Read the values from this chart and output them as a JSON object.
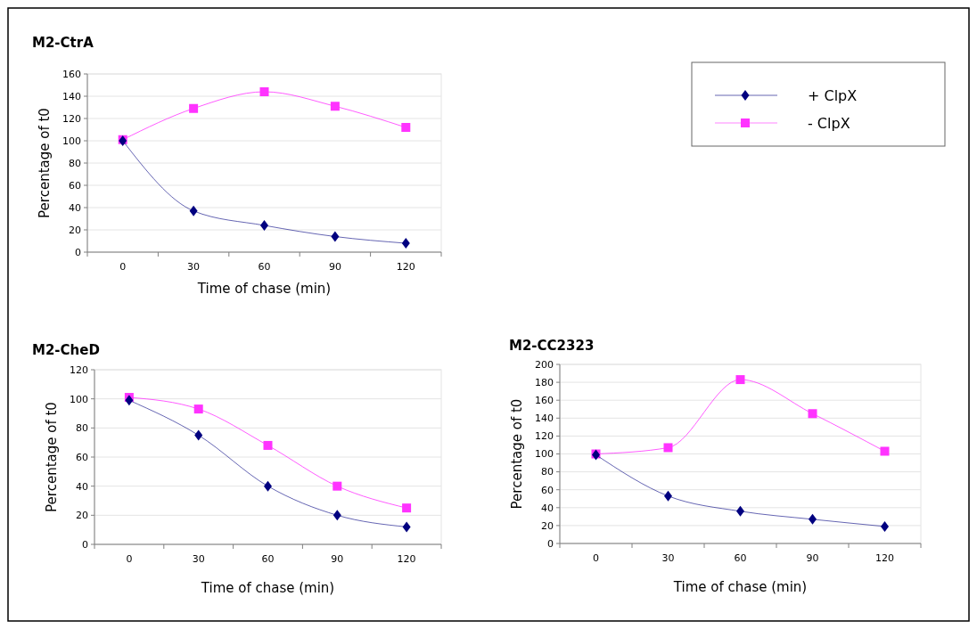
{
  "chart_data": [
    {
      "type": "line",
      "title": "M2-CtrA",
      "xlabel": "Time of chase (min)",
      "ylabel": "Percentage of t0",
      "categories": [
        "0",
        "30",
        "60",
        "90",
        "120"
      ],
      "ylim": [
        0,
        160
      ],
      "yticks": [
        0,
        20,
        40,
        60,
        80,
        100,
        120,
        140,
        160
      ],
      "grid": "y",
      "legend": "right",
      "series": [
        {
          "name": "+ ClpX",
          "color": "#000080",
          "marker": "diamond",
          "values": [
            100,
            37,
            24,
            14,
            8
          ]
        },
        {
          "name": "- ClpX",
          "color": "#ff33ff",
          "marker": "square",
          "values": [
            101,
            129,
            144,
            131,
            112
          ]
        }
      ]
    },
    {
      "type": "line",
      "title": "M2-CheD",
      "xlabel": "Time of chase (min)",
      "ylabel": "Percentage of t0",
      "categories": [
        "0",
        "30",
        "60",
        "90",
        "120"
      ],
      "ylim": [
        0,
        120
      ],
      "yticks": [
        0,
        20,
        40,
        60,
        80,
        100,
        120
      ],
      "grid": "y",
      "series": [
        {
          "color": "#000080",
          "marker": "diamond",
          "values": [
            99,
            75,
            40,
            20,
            12
          ]
        },
        {
          "color": "#ff33ff",
          "marker": "square",
          "values": [
            101,
            93,
            68,
            40,
            25
          ]
        }
      ]
    },
    {
      "type": "line",
      "title": "M2-CC2323",
      "xlabel": "Time of chase (min)",
      "ylabel": "Percentage of t0",
      "categories": [
        "0",
        "30",
        "60",
        "90",
        "120"
      ],
      "ylim": [
        0,
        200
      ],
      "yticks": [
        0,
        20,
        40,
        60,
        80,
        100,
        120,
        140,
        160,
        180,
        200
      ],
      "grid": "y",
      "series": [
        {
          "color": "#000080",
          "marker": "diamond",
          "values": [
            99,
            53,
            36,
            27,
            19
          ]
        },
        {
          "color": "#ff33ff",
          "marker": "square",
          "values": [
            100,
            107,
            183,
            145,
            103
          ]
        }
      ]
    }
  ]
}
